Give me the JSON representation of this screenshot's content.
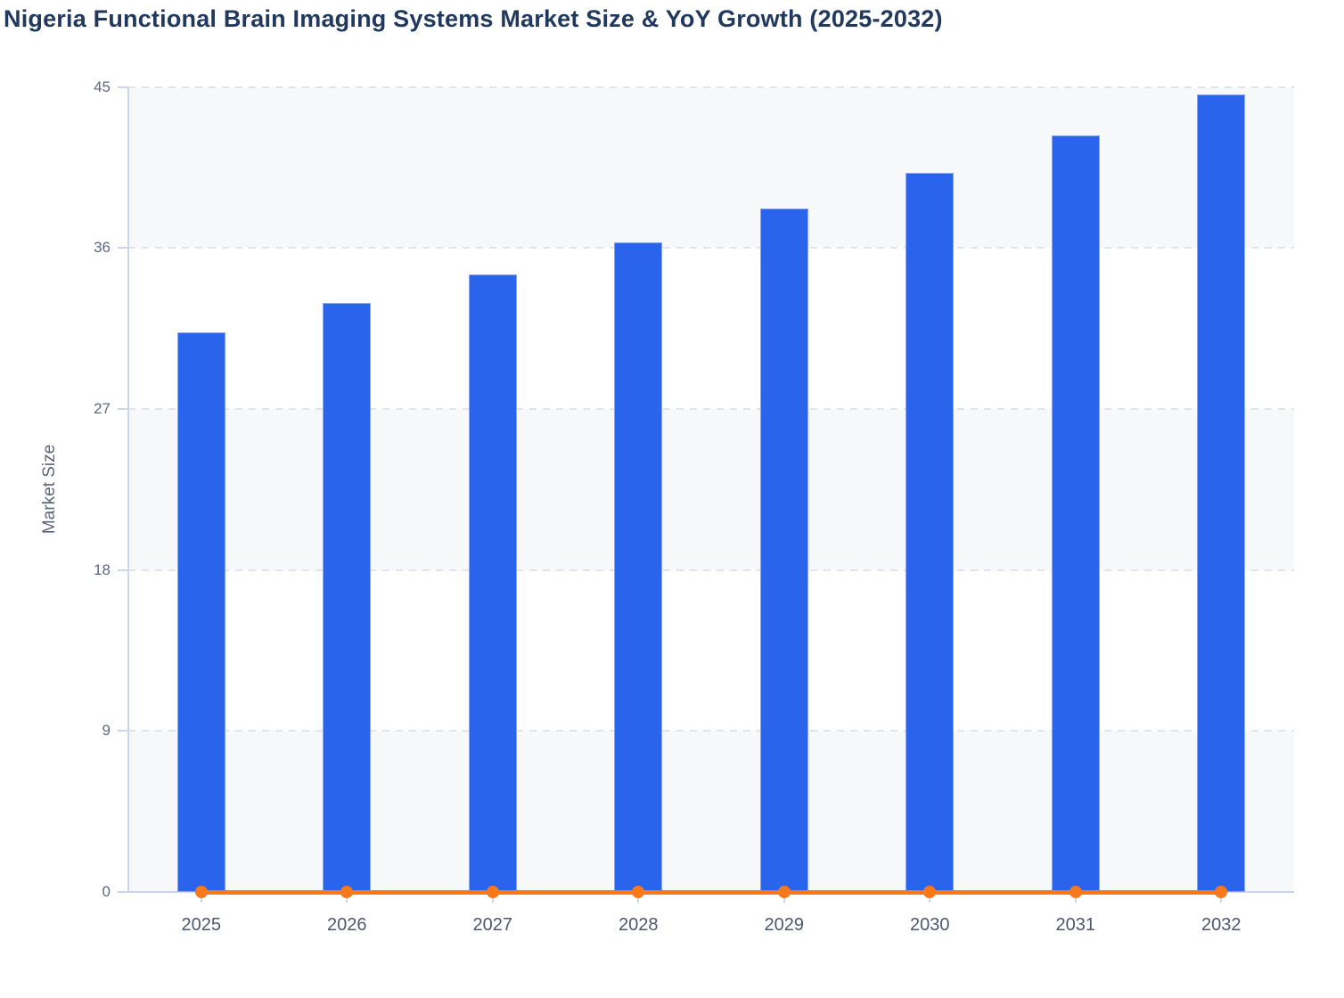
{
  "title": "Nigeria Functional Brain Imaging Systems Market Size & YoY Growth (2025-2032)",
  "chart_data": {
    "type": "bar",
    "title": "Nigeria Functional Brain Imaging Systems Market Size & YoY Growth (2025-2032)",
    "categories": [
      "2025",
      "2026",
      "2027",
      "2028",
      "2029",
      "2030",
      "2031",
      "2032"
    ],
    "series": [
      {
        "name": "Market Size",
        "type": "bar",
        "color": "#2b64ec",
        "values": [
          31.3,
          32.9,
          34.5,
          36.3,
          38.2,
          40.2,
          42.3,
          44.6
        ]
      },
      {
        "name": "YoY Growth",
        "type": "line",
        "color": "#f7791e",
        "values": [
          0,
          0,
          0,
          0,
          0,
          0,
          0,
          0
        ]
      }
    ],
    "xlabel": "",
    "ylabel": "Market Size",
    "ylim": [
      0,
      45
    ],
    "yticks": [
      0,
      9,
      18,
      27,
      36,
      45
    ],
    "grid": "horizontal-dashed",
    "legend_position": "none",
    "plot_bands": "alternating light bands between gridlines (0-9, 18-27, 36-45)"
  },
  "colors": {
    "bar": "#2b64ec",
    "bar_edge": "#8aa6f2",
    "line": "#f7791e",
    "title_text": "#21395e",
    "axis": "#cdd5ec",
    "gridline": "#e3e4e9",
    "band_fill": "#f7f8fa",
    "y_tick_text": "#5d6880",
    "x_tick_text": "#4d5870",
    "background": "#ffffff"
  }
}
